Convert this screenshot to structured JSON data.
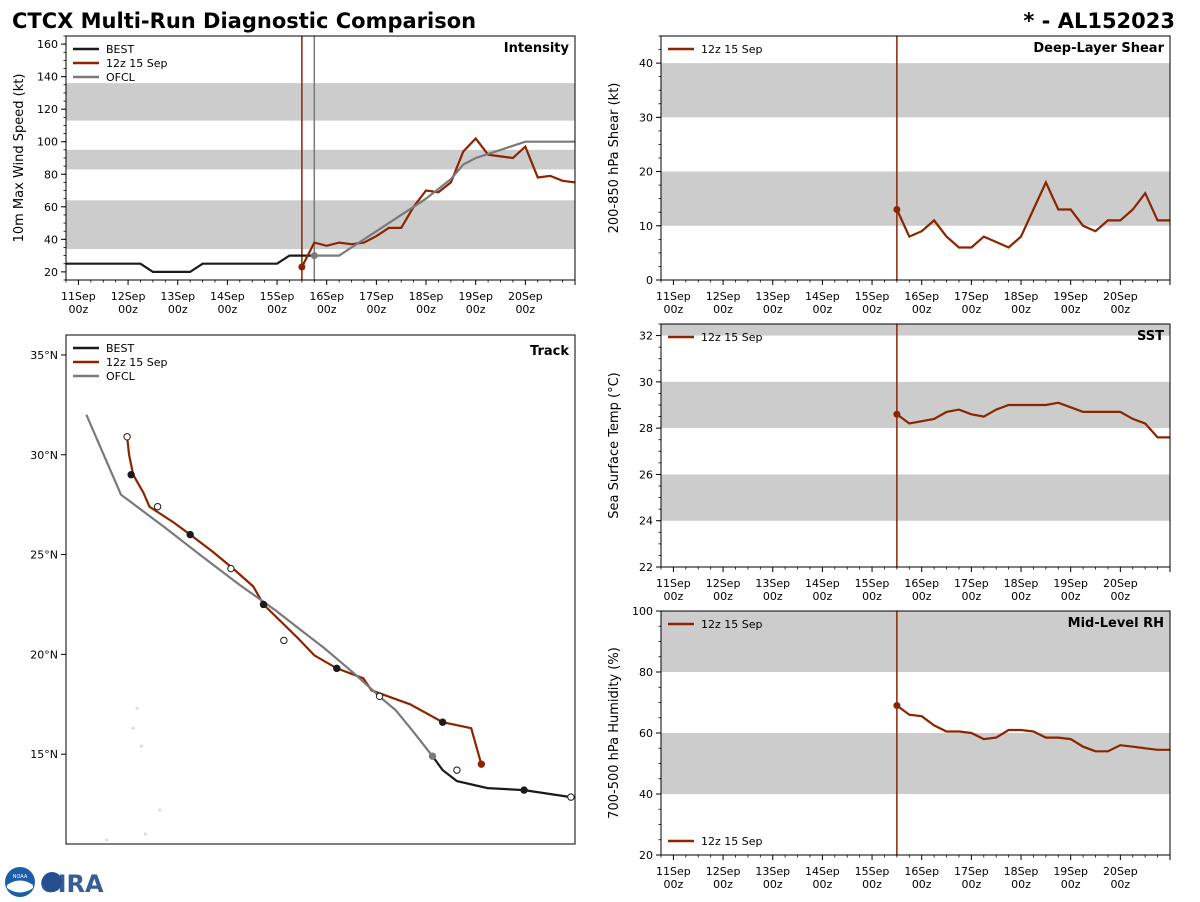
{
  "header": {
    "title": "CTCX Multi-Run Diagnostic Comparison",
    "storm": "* - AL152023"
  },
  "logo": {
    "text": "CIRA",
    "noaa_text": "NOAA"
  },
  "colors": {
    "best": "#1a1a1a",
    "run": "#8b2500",
    "ofcl": "#7a7a7a",
    "band": "#cccccc",
    "vline_ofcl": "#7a7a7a"
  },
  "time_axis": {
    "tick_labels": [
      [
        "11Sep",
        "00z"
      ],
      [
        "12Sep",
        "00z"
      ],
      [
        "13Sep",
        "00z"
      ],
      [
        "14Sep",
        "00z"
      ],
      [
        "15Sep",
        "00z"
      ],
      [
        "16Sep",
        "00z"
      ],
      [
        "17Sep",
        "00z"
      ],
      [
        "18Sep",
        "00z"
      ],
      [
        "19Sep",
        "00z"
      ],
      [
        "20Sep",
        "00z"
      ]
    ],
    "xlim_hours": [
      -6,
      240
    ],
    "run_init_hour": 108,
    "ofcl_init_hour": 114
  },
  "chart_data": [
    {
      "id": "intensity",
      "type": "line",
      "title": "Intensity",
      "ylabel": "10m Max Wind Speed (kt)",
      "ylim": [
        15,
        165
      ],
      "yticks": [
        20,
        40,
        60,
        80,
        100,
        120,
        140,
        160
      ],
      "bands": [
        [
          34,
          64
        ],
        [
          83,
          95
        ],
        [
          113,
          136
        ]
      ],
      "legend": [
        "BEST",
        "12z 15 Sep",
        "OFCL"
      ],
      "series": [
        {
          "name": "BEST",
          "x": [
            -6,
            0,
            6,
            12,
            18,
            24,
            30,
            36,
            42,
            48,
            54,
            60,
            66,
            72,
            78,
            84,
            90,
            96,
            102,
            108,
            114
          ],
          "y": [
            25,
            25,
            25,
            25,
            25,
            25,
            25,
            20,
            20,
            20,
            20,
            25,
            25,
            25,
            25,
            25,
            25,
            25,
            30,
            30,
            30
          ]
        },
        {
          "name": "12z 15 Sep",
          "x": [
            108,
            114,
            120,
            126,
            132,
            138,
            144,
            150,
            156,
            162,
            168,
            174,
            180,
            186,
            192,
            198,
            204,
            210,
            216,
            222,
            228,
            234,
            240
          ],
          "y": [
            23,
            38,
            36,
            38,
            37,
            38,
            42,
            47,
            47,
            60,
            70,
            69,
            75,
            94,
            102,
            92,
            91,
            90,
            97,
            78,
            79,
            76,
            75
          ]
        },
        {
          "name": "OFCL",
          "x": [
            114,
            120,
            126,
            132,
            144,
            156,
            168,
            180,
            186,
            192,
            204,
            216,
            228,
            240
          ],
          "y": [
            30,
            30,
            30,
            35,
            45,
            55,
            65,
            77,
            86,
            90,
            95,
            100,
            100,
            100
          ]
        }
      ]
    },
    {
      "id": "shear",
      "type": "line",
      "title": "Deep-Layer Shear",
      "ylabel": "200-850 hPa Shear (kt)",
      "ylim": [
        0,
        45
      ],
      "yticks": [
        0,
        10,
        20,
        30,
        40
      ],
      "bands": [
        [
          10,
          20
        ],
        [
          30,
          40
        ]
      ],
      "legend": [
        "12z 15 Sep"
      ],
      "series": [
        {
          "name": "12z 15 Sep",
          "x": [
            108,
            114,
            120,
            126,
            132,
            138,
            144,
            150,
            156,
            162,
            168,
            174,
            180,
            186,
            192,
            198,
            204,
            210,
            216,
            222,
            228,
            234,
            240
          ],
          "y": [
            13,
            8,
            9,
            11,
            8,
            6,
            6,
            8,
            7,
            6,
            8,
            13,
            18,
            13,
            13,
            10,
            9,
            11,
            11,
            13,
            16,
            11,
            11
          ]
        }
      ]
    },
    {
      "id": "sst",
      "type": "line",
      "title": "SST",
      "ylabel": "Sea Surface Temp (°C)",
      "ylim": [
        22,
        32.5
      ],
      "yticks": [
        22,
        24,
        26,
        28,
        30,
        32
      ],
      "bands": [
        [
          24,
          26
        ],
        [
          28,
          30
        ],
        [
          32,
          33
        ]
      ],
      "legend": [
        "12z 15 Sep"
      ],
      "series": [
        {
          "name": "12z 15 Sep",
          "x": [
            108,
            114,
            120,
            126,
            132,
            138,
            144,
            150,
            156,
            162,
            168,
            174,
            180,
            186,
            192,
            198,
            204,
            210,
            216,
            222,
            228,
            234,
            240
          ],
          "y": [
            28.6,
            28.2,
            28.3,
            28.4,
            28.7,
            28.8,
            28.6,
            28.5,
            28.8,
            29.0,
            29.0,
            29.0,
            29.0,
            29.1,
            28.9,
            28.7,
            28.7,
            28.7,
            28.7,
            28.4,
            28.2,
            27.6,
            27.6
          ]
        }
      ]
    },
    {
      "id": "rh",
      "type": "line",
      "title": "Mid-Level RH",
      "ylabel": "700-500 hPa Humidity (%)",
      "ylim": [
        20,
        100
      ],
      "yticks": [
        20,
        40,
        60,
        80,
        100
      ],
      "bands": [
        [
          40,
          60
        ],
        [
          80,
          100
        ]
      ],
      "legend": [
        "12z 15 Sep"
      ],
      "series": [
        {
          "name": "12z 15 Sep",
          "x": [
            108,
            114,
            120,
            126,
            132,
            138,
            144,
            150,
            156,
            162,
            168,
            174,
            180,
            186,
            192,
            198,
            204,
            210,
            216,
            222,
            228,
            234,
            240
          ],
          "y": [
            69,
            66,
            65.5,
            62.5,
            60.5,
            60.5,
            60,
            58,
            58.5,
            61,
            61,
            60.5,
            58.5,
            58.5,
            58,
            55.5,
            54,
            54,
            56,
            55.5,
            55,
            54.5,
            54.5
          ]
        }
      ]
    },
    {
      "id": "track",
      "type": "line",
      "title": "Track",
      "ylabel": "",
      "lat_range": [
        10.5,
        36
      ],
      "lat_ticks": [
        15,
        20,
        25,
        30,
        35
      ],
      "lat_tick_labels": [
        "15°N",
        "20°N",
        "25°N",
        "30°N",
        "35°N"
      ],
      "lon_range": [
        -66.5,
        -41.5
      ],
      "legend": [
        "BEST",
        "12z 15 Sep",
        "OFCL"
      ],
      "series": [
        {
          "name": "BEST",
          "lon": [
            -41.7,
            -44.0,
            -45.8,
            -47.3,
            -48.0,
            -48.5
          ],
          "lat": [
            12.85,
            13.2,
            13.3,
            13.65,
            14.2,
            14.9
          ]
        },
        {
          "name": "12z 15 Sep",
          "lon": [
            -46.1,
            -46.6,
            -48.0,
            -49.6,
            -51.5,
            -51.9,
            -53.2,
            -54.3,
            -55.1,
            -55.9,
            -56.8,
            -57.3,
            -58.3,
            -59.3,
            -60.4,
            -61.2,
            -62.4,
            -62.7,
            -63.2,
            -63.4,
            -63.5
          ],
          "lat": [
            14.5,
            16.3,
            16.6,
            17.5,
            18.2,
            18.8,
            19.3,
            19.95,
            20.8,
            21.6,
            22.5,
            23.4,
            24.3,
            25.15,
            26.0,
            26.6,
            27.4,
            28.1,
            29.0,
            30.0,
            30.9
          ]
        },
        {
          "name": "OFCL",
          "lon": [
            -48.5,
            -49.5,
            -50.3,
            -51.0,
            -52.3,
            -53.8,
            -55.2,
            -56.2,
            -58.0,
            -59.8,
            -61.7,
            -63.8,
            -65.5
          ],
          "lat": [
            14.9,
            16.2,
            17.2,
            17.8,
            19.0,
            20.3,
            21.4,
            22.2,
            23.5,
            24.9,
            26.4,
            28.0,
            32.0
          ]
        }
      ],
      "markers": [
        {
          "series": "BEST",
          "lon": -41.7,
          "lat": 12.85,
          "fill": "open"
        },
        {
          "series": "BEST",
          "lon": -44.0,
          "lat": 13.2,
          "fill": "filled"
        },
        {
          "series": "BEST",
          "lon": -47.3,
          "lat": 14.2,
          "fill": "open"
        },
        {
          "series": "OFCL",
          "lon": -48.5,
          "lat": 14.9,
          "fill": "gray"
        },
        {
          "series": "12z 15 Sep",
          "lon": -46.1,
          "lat": 14.5,
          "fill": "run"
        },
        {
          "series": "12z 15 Sep",
          "lon": -48.0,
          "lat": 16.6,
          "fill": "filled"
        },
        {
          "series": "12z 15 Sep",
          "lon": -51.1,
          "lat": 17.9,
          "fill": "open"
        },
        {
          "series": "12z 15 Sep",
          "lon": -53.2,
          "lat": 19.3,
          "fill": "filled"
        },
        {
          "series": "12z 15 Sep",
          "lon": -55.8,
          "lat": 20.7,
          "fill": "open"
        },
        {
          "series": "12z 15 Sep",
          "lon": -56.8,
          "lat": 22.5,
          "fill": "filled"
        },
        {
          "series": "12z 15 Sep",
          "lon": -58.4,
          "lat": 24.3,
          "fill": "open"
        },
        {
          "series": "12z 15 Sep",
          "lon": -60.4,
          "lat": 26.0,
          "fill": "filled"
        },
        {
          "series": "12z 15 Sep",
          "lon": -62.0,
          "lat": 27.4,
          "fill": "open"
        },
        {
          "series": "12z 15 Sep",
          "lon": -63.3,
          "lat": 29.0,
          "fill": "filled"
        },
        {
          "series": "12z 15 Sep",
          "lon": -63.5,
          "lat": 30.9,
          "fill": "open"
        }
      ]
    }
  ]
}
